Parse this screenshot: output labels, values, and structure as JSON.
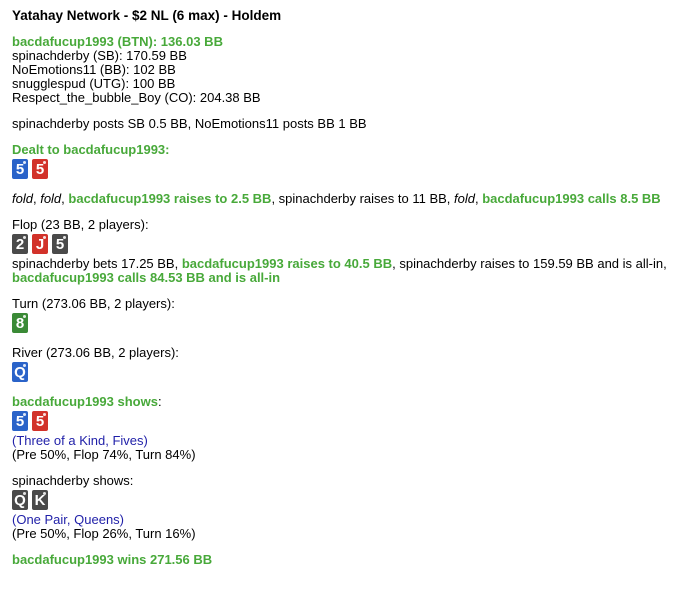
{
  "title": "Yatahay Network - $2 NL (6 max) - Holdem",
  "suit_colors": {
    "s": "#4a4a4a",
    "h": "#d2322a",
    "d": "#2a63c9",
    "c": "#3a8a36"
  },
  "blocks": [
    {
      "lines": [
        [
          {
            "t": "bacdafucup1993 (BTN): 136.03 BB",
            "s": "g"
          }
        ],
        [
          {
            "t": "spinachderby (SB): 170.59 BB"
          }
        ],
        [
          {
            "t": "NoEmotions11 (BB): 102 BB"
          }
        ],
        [
          {
            "t": "snugglespud (UTG): 100 BB"
          }
        ],
        [
          {
            "t": "Respect_the_bubble_Boy (CO): 204.38 BB"
          }
        ]
      ]
    },
    {
      "lines": [
        [
          {
            "t": "spinachderby posts SB 0.5 BB, NoEmotions11 posts BB 1 BB"
          }
        ]
      ]
    },
    {
      "lines": [
        [
          {
            "t": "Dealt to bacdafucup1993:",
            "s": "g"
          }
        ]
      ],
      "cards": [
        {
          "r": "5",
          "s": "d"
        },
        {
          "r": "5",
          "s": "h"
        }
      ]
    },
    {
      "lines": [
        [
          {
            "t": "fold",
            "s": "i"
          },
          {
            "t": ", "
          },
          {
            "t": "fold",
            "s": "i"
          },
          {
            "t": ", "
          },
          {
            "t": "bacdafucup1993 raises to 2.5 BB",
            "s": "g"
          },
          {
            "t": ", spinachderby raises to 11 BB, "
          },
          {
            "t": "fold",
            "s": "i"
          },
          {
            "t": ", "
          },
          {
            "t": "bacdafucup1993 calls 8.5 BB",
            "s": "g"
          }
        ]
      ]
    },
    {
      "lines": [
        [
          {
            "t": "Flop (23 BB, 2 players):"
          }
        ]
      ],
      "cards": [
        {
          "r": "2",
          "s": "s"
        },
        {
          "r": "J",
          "s": "h"
        },
        {
          "r": "5",
          "s": "s"
        }
      ],
      "after": [
        [
          {
            "t": "spinachderby bets 17.25 BB, "
          },
          {
            "t": "bacdafucup1993 raises to 40.5 BB",
            "s": "g"
          },
          {
            "t": ", spinachderby raises to 159.59 BB and is all-in,"
          }
        ],
        [
          {
            "t": "bacdafucup1993 calls 84.53 BB and is all-in",
            "s": "g"
          }
        ]
      ]
    },
    {
      "lines": [
        [
          {
            "t": "Turn (273.06 BB, 2 players):"
          }
        ]
      ],
      "cards": [
        {
          "r": "8",
          "s": "c"
        }
      ]
    },
    {
      "lines": [
        [
          {
            "t": "River (273.06 BB, 2 players):"
          }
        ]
      ],
      "cards": [
        {
          "r": "Q",
          "s": "d"
        }
      ]
    },
    {
      "lines": [
        [
          {
            "t": "bacdafucup1993 shows",
            "s": "g"
          },
          {
            "t": ":"
          }
        ]
      ],
      "cards": [
        {
          "r": "5",
          "s": "d"
        },
        {
          "r": "5",
          "s": "h"
        }
      ],
      "after": [
        [
          {
            "t": "(Three of a Kind, Fives)",
            "s": "b"
          }
        ],
        [
          {
            "t": "(Pre 50%, Flop 74%, Turn 84%)"
          }
        ]
      ]
    },
    {
      "lines": [
        [
          {
            "t": "spinachderby shows:"
          }
        ]
      ],
      "cards": [
        {
          "r": "Q",
          "s": "s"
        },
        {
          "r": "K",
          "s": "s"
        }
      ],
      "after": [
        [
          {
            "t": "(One Pair, Queens)",
            "s": "b"
          }
        ],
        [
          {
            "t": "(Pre 50%, Flop 26%, Turn 16%)"
          }
        ]
      ]
    },
    {
      "lines": [
        [
          {
            "t": "bacdafucup1993 wins 271.56 BB",
            "s": "g"
          }
        ]
      ]
    }
  ]
}
